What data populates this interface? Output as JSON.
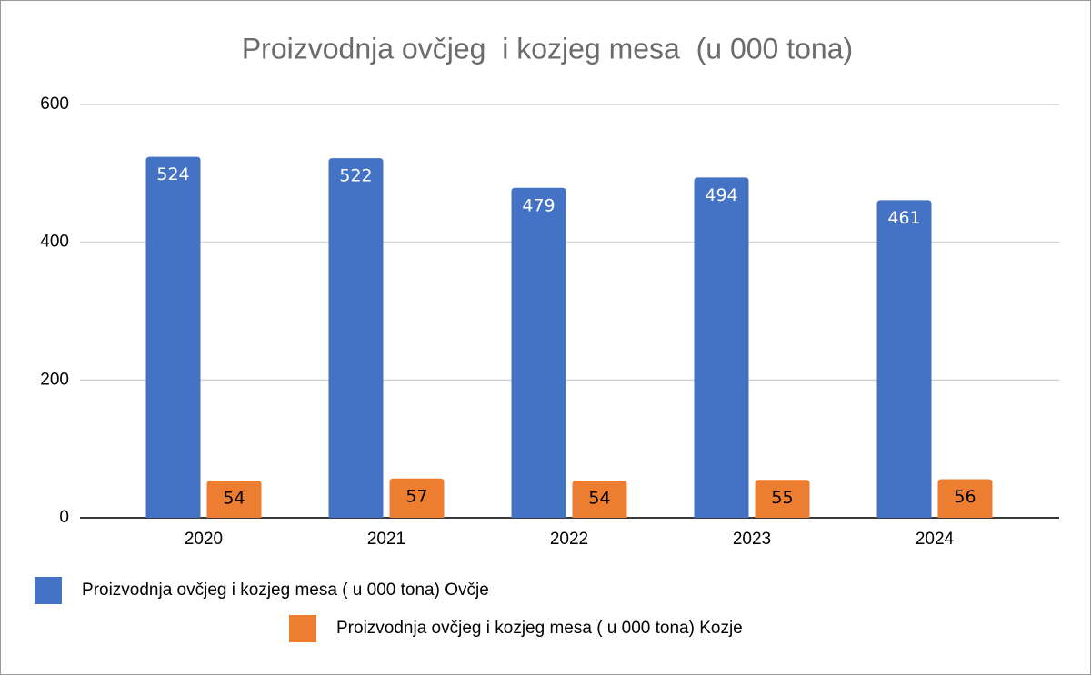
{
  "chart_data": {
    "type": "bar",
    "title": "Proizvodnja ovčjeg  i kozjeg mesa  (u 000 tona)",
    "categories": [
      "2020",
      "2021",
      "2022",
      "2023",
      "2024"
    ],
    "series": [
      {
        "name": "Proizvodnja ovčjeg i kozjeg mesa ( u 000 tona) Ovčje",
        "color": "#4472c4",
        "values": [
          524,
          522,
          479,
          494,
          461
        ]
      },
      {
        "name": "Proizvodnja ovčjeg i kozjeg mesa ( u 000 tona) Kozje",
        "color": "#ed7d31",
        "values": [
          54,
          57,
          54,
          55,
          56
        ]
      }
    ],
    "ylim": [
      0,
      600
    ],
    "yticks": [
      0,
      200,
      400,
      600
    ],
    "grid": true,
    "data_labels": true
  }
}
